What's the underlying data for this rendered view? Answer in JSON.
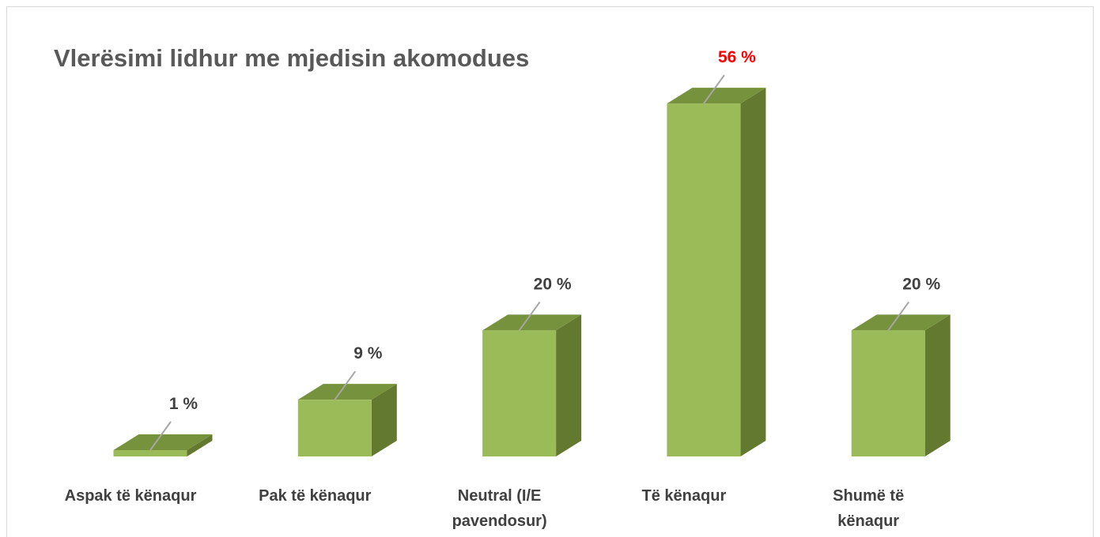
{
  "chart_data": {
    "type": "bar",
    "title": "Vlerësimi lidhur me mjedisin akomodues",
    "categories": [
      "Aspak të kënaqur",
      "Pak të kënaqur",
      "Neutral (I/E pavendosur)",
      "Të kënaqur",
      "Shumë të kënaqur"
    ],
    "values": [
      1,
      9,
      20,
      56,
      20
    ],
    "value_labels": [
      "1 %",
      "9 %",
      "20 %",
      "56 %",
      "20 %"
    ],
    "value_label_colors": [
      "#404040",
      "#404040",
      "#404040",
      "#ff0000",
      "#404040"
    ],
    "color": "#9bbb59",
    "top_color": "#76923c",
    "side_color": "#62792f"
  }
}
